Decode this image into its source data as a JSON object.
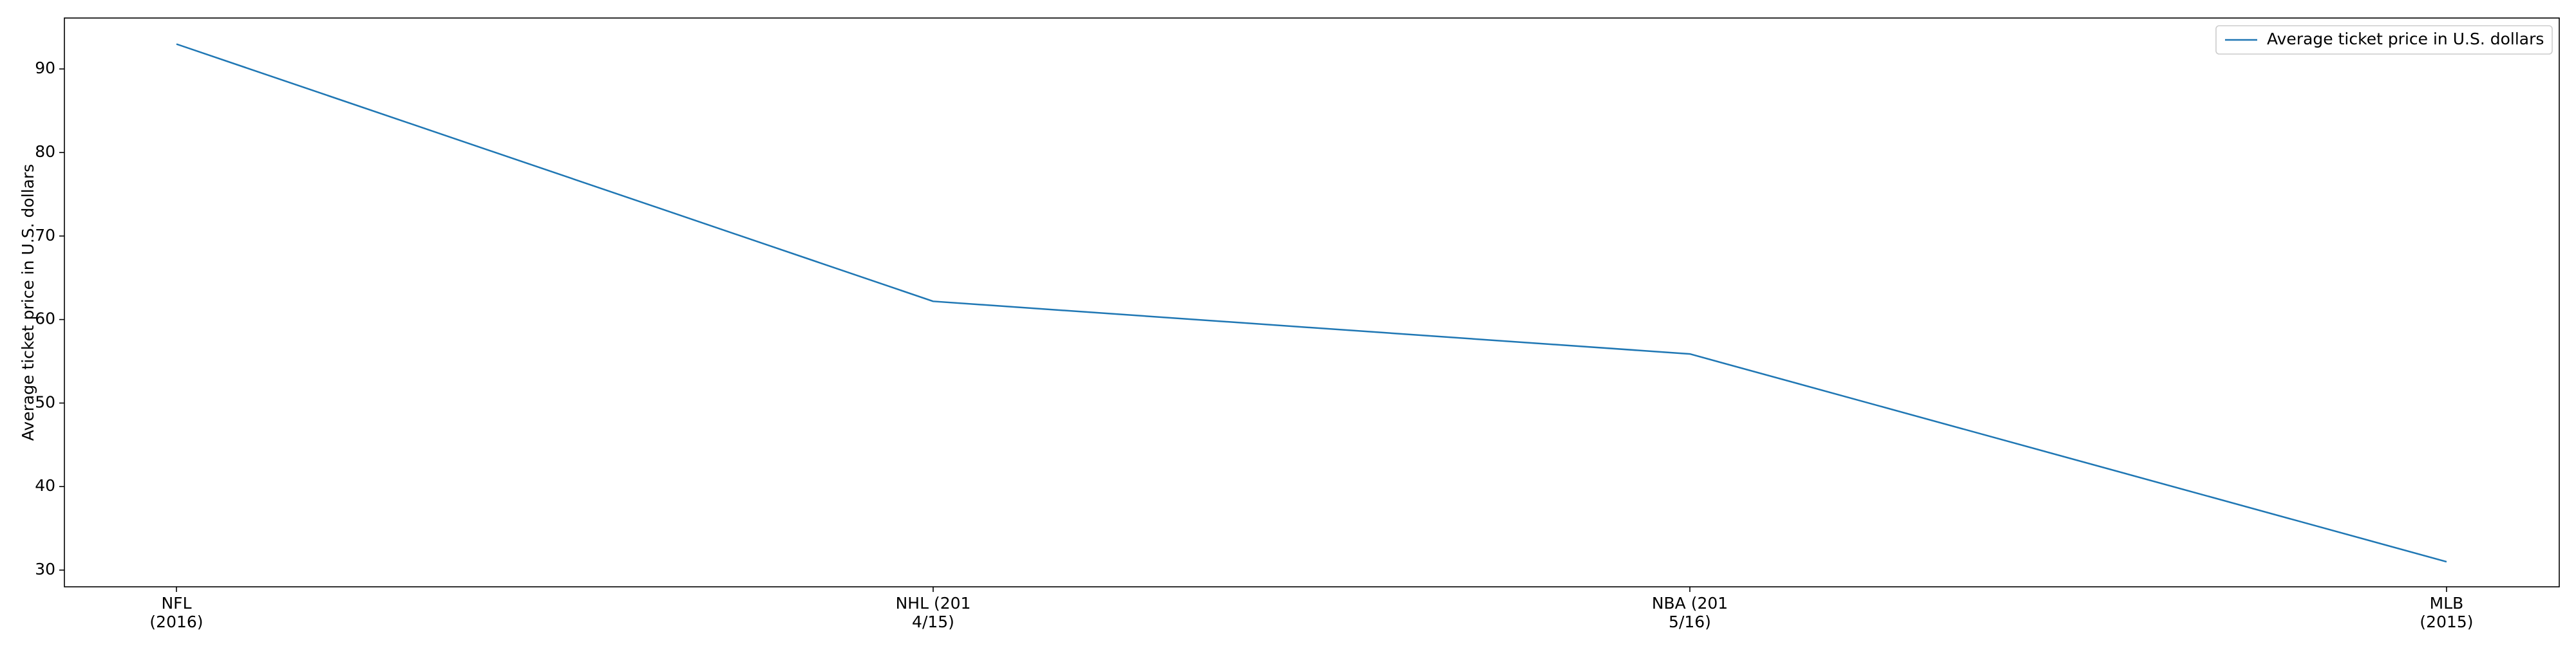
{
  "chart_data": {
    "type": "line",
    "title": "",
    "xlabel": "",
    "ylabel": "Average ticket price in U.S. dollars",
    "categories": [
      [
        "NFL",
        "(2016)"
      ],
      [
        "NHL (201",
        "4/15)"
      ],
      [
        "NBA (201",
        "5/16)"
      ],
      [
        "MLB",
        "(2015)"
      ]
    ],
    "series": [
      {
        "name": "Average ticket price in U.S. dollars",
        "values": [
          92.98,
          62.18,
          55.88,
          31.0
        ],
        "color": "#1f77b4"
      }
    ],
    "ylim": [
      28.0,
      96.1
    ],
    "yticks": [
      30,
      40,
      50,
      60,
      70,
      80,
      90
    ],
    "grid": false,
    "legend_position": "top-right"
  }
}
